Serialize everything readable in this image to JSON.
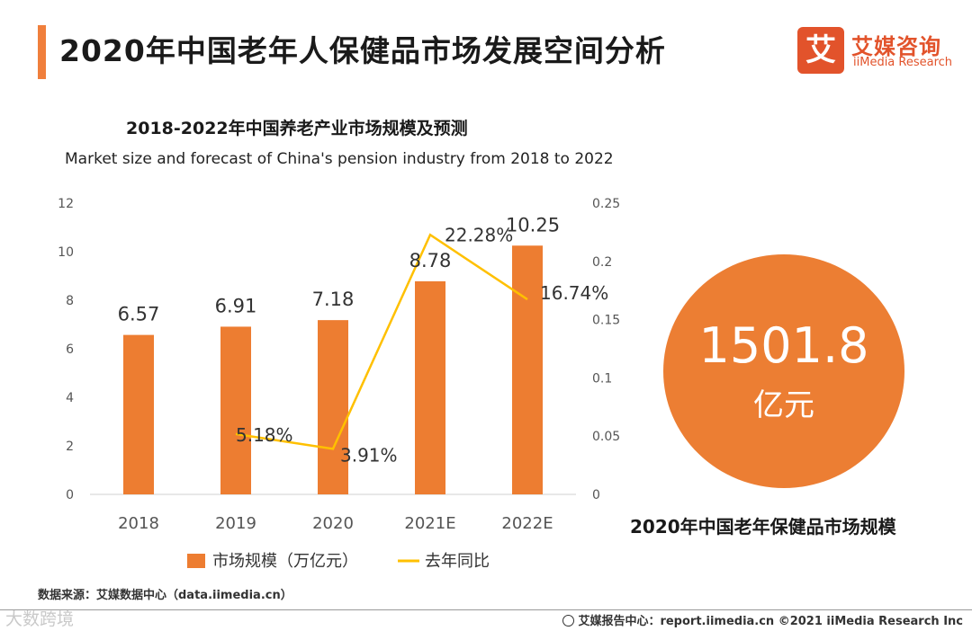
{
  "header": {
    "title": "2020年中国老年人保健品市场发展空间分析",
    "logo": {
      "mark": "艾",
      "name_cn": "艾媒咨询",
      "name_en": "iiMedia Research"
    }
  },
  "chart_data": {
    "type": "bar",
    "title": "2018-2022年中国养老产业市场规模及预测",
    "subtitle": "Market size and forecast of China's pension industry from 2018 to 2022",
    "categories": [
      "2018",
      "2019",
      "2020",
      "2021E",
      "2022E"
    ],
    "series": [
      {
        "name": "市场规模（万亿元）",
        "type": "bar",
        "axis": "left",
        "values": [
          6.57,
          6.91,
          7.18,
          8.78,
          10.25
        ],
        "labels": [
          "6.57",
          "6.91",
          "7.18",
          "8.78",
          "10.25"
        ],
        "color": "#ed7d31"
      },
      {
        "name": "去年同比",
        "type": "line",
        "axis": "right",
        "values": [
          null,
          0.0518,
          0.0391,
          0.2228,
          0.1674
        ],
        "labels": [
          "",
          "5.18%",
          "3.91%",
          "22.28%",
          "16.74%"
        ],
        "color": "#ffc000"
      }
    ],
    "y_left": {
      "ylim": [
        0,
        12
      ],
      "ticks": [
        "0",
        "2",
        "4",
        "6",
        "8",
        "10",
        "12"
      ]
    },
    "y_right": {
      "ylim": [
        0,
        0.25
      ],
      "ticks": [
        "0",
        "0.05",
        "0.1",
        "0.15",
        "0.2",
        "0.25"
      ]
    },
    "grid": false,
    "legend": "bottom"
  },
  "highlight": {
    "value": "1501.8",
    "unit": "亿元",
    "caption": "2020年中国老年保健品市场规模",
    "color": "#ec7e33"
  },
  "source": "数据来源：艾媒数据中心（data.iimedia.cn）",
  "footer": {
    "watermark": "大数跨境",
    "text": "艾媒报告中心：report.iimedia.cn ©2021 iiMedia Research Inc"
  },
  "colors": {
    "accent": "#f07f3c",
    "brand": "#e2532b"
  }
}
